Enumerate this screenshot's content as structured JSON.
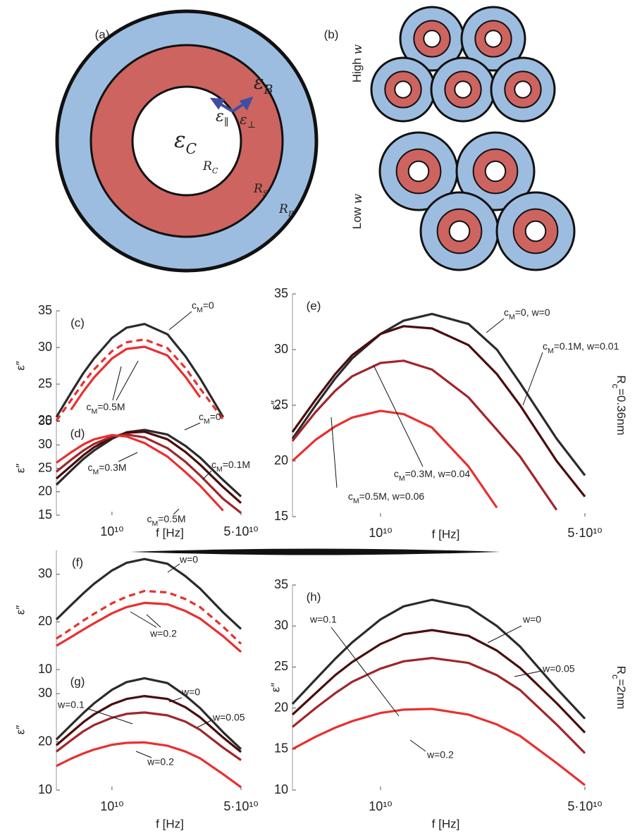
{
  "diagrams": {
    "panel_a": {
      "label": "(a)",
      "texts": [
        "εB",
        "ε∥",
        "ε⊥",
        "εC",
        "RC",
        "RS",
        "RB"
      ]
    },
    "panel_b": {
      "label": "(b)",
      "texts": [
        "High w",
        "Low w"
      ]
    }
  },
  "chart_data": [
    {
      "type": "line",
      "label": "(c)",
      "xscale": "log",
      "ylabel": "ε″",
      "x": [
        5000000000.0,
        6000000000.0,
        7000000000.0,
        8000000000.0,
        10000000000.0,
        12000000000.0,
        15000000000.0,
        20000000000.0,
        25000000000.0,
        30000000000.0,
        40000000000.0,
        50000000000.0
      ],
      "xlim": [
        5000000000.0,
        50000000000.0
      ],
      "ylim": [
        20,
        35
      ],
      "yticks": [
        20,
        25,
        30,
        35
      ],
      "series": [
        {
          "color": "#2b2b2b",
          "values": [
            20.5,
            23.8,
            26.5,
            28.5,
            31.3,
            32.7,
            33.2,
            31.8,
            28.8,
            25.8,
            20.5,
            null
          ]
        },
        {
          "color": "#e8302f",
          "dash": true,
          "values": [
            20.0,
            22.8,
            25.2,
            27.0,
            29.5,
            30.7,
            31.1,
            29.9,
            27.2,
            24.4,
            20.2,
            null
          ]
        },
        {
          "color": "#e8302f",
          "values": [
            null,
            21.5,
            24.0,
            25.9,
            28.5,
            29.8,
            30.1,
            28.9,
            26.0,
            23.2,
            null,
            null
          ]
        }
      ],
      "annotations": [
        "cM=0",
        "cM=0.5M"
      ]
    },
    {
      "type": "line",
      "label": "(d)",
      "xscale": "log",
      "ylabel": "ε″",
      "xlabel": "f [Hz]",
      "x": [
        5000000000.0,
        6000000000.0,
        7000000000.0,
        8000000000.0,
        10000000000.0,
        12000000000.0,
        15000000000.0,
        20000000000.0,
        25000000000.0,
        30000000000.0,
        40000000000.0,
        50000000000.0
      ],
      "xlim": [
        5000000000.0,
        50000000000.0
      ],
      "xticks": [
        {
          "value": 10000000000.0,
          "label": "10¹⁰"
        },
        {
          "value": 50000000000.0,
          "label": "5·10¹⁰"
        }
      ],
      "ylim": [
        15,
        35
      ],
      "yticks": [
        15,
        20,
        25,
        30,
        35
      ],
      "series": [
        {
          "color": "#2b2b2b",
          "values": [
            21.5,
            24.5,
            27.0,
            28.8,
            31.3,
            32.7,
            33.2,
            32.2,
            29.8,
            27.3,
            22.5,
            19.0
          ]
        },
        {
          "color": "#4a0c0c",
          "values": [
            22.8,
            25.5,
            27.8,
            29.5,
            31.6,
            32.6,
            32.8,
            31.2,
            28.5,
            25.8,
            21.0,
            17.6
          ]
        },
        {
          "color": "#a0262a",
          "values": [
            24.3,
            26.8,
            28.8,
            30.2,
            31.8,
            32.2,
            31.6,
            29.3,
            26.4,
            23.5,
            18.5,
            15.5
          ]
        },
        {
          "color": "#e8302f",
          "values": [
            26.2,
            28.4,
            30.1,
            31.2,
            32.1,
            31.8,
            30.4,
            27.5,
            24.2,
            21.3,
            16.0,
            null
          ]
        }
      ],
      "annotations": [
        "cM=0",
        "cM=0.1M",
        "cM=0.3M",
        "cM=0.5M"
      ]
    },
    {
      "type": "line",
      "label": "(e)",
      "xscale": "log",
      "ylabel": "ε″",
      "xlabel": "f [Hz]",
      "side_label": "Rc=0.36nm",
      "x": [
        5000000000.0,
        6000000000.0,
        7000000000.0,
        8000000000.0,
        10000000000.0,
        12000000000.0,
        15000000000.0,
        20000000000.0,
        25000000000.0,
        30000000000.0,
        40000000000.0,
        50000000000.0
      ],
      "xlim": [
        5000000000.0,
        50000000000.0
      ],
      "xticks": [
        {
          "value": 10000000000.0,
          "label": "10¹⁰"
        },
        {
          "value": 50000000000.0,
          "label": "5·10¹⁰"
        }
      ],
      "ylim": [
        15,
        35
      ],
      "yticks": [
        15,
        20,
        25,
        30,
        35
      ],
      "series": [
        {
          "color": "#2b2b2b",
          "values": [
            22.0,
            25.0,
            27.4,
            29.2,
            31.4,
            32.6,
            33.2,
            32.3,
            30.0,
            27.0,
            22.0,
            18.7
          ]
        },
        {
          "color": "#4a0c0c",
          "values": [
            22.6,
            25.5,
            27.8,
            29.5,
            31.4,
            32.1,
            31.9,
            30.4,
            27.8,
            25.0,
            20.0,
            16.8
          ]
        },
        {
          "color": "#a0262a",
          "values": [
            21.8,
            24.4,
            26.3,
            27.6,
            28.8,
            29.0,
            28.2,
            25.7,
            22.8,
            20.4,
            15.6,
            null
          ]
        },
        {
          "color": "#e8302f",
          "values": [
            20.0,
            21.9,
            23.1,
            23.9,
            24.5,
            24.2,
            23.0,
            19.5,
            15.8,
            null,
            null,
            null
          ]
        }
      ],
      "annotations": [
        "cM=0, w=0",
        "cM=0.1M, w=0.01",
        "cM=0.3M, w=0.04",
        "cM=0.5M, w=0.06"
      ]
    },
    {
      "type": "line",
      "label": "(f)",
      "xscale": "log",
      "ylabel": "ε″",
      "x": [
        5000000000.0,
        6000000000.0,
        7000000000.0,
        8000000000.0,
        10000000000.0,
        12000000000.0,
        15000000000.0,
        20000000000.0,
        25000000000.0,
        30000000000.0,
        40000000000.0,
        50000000000.0
      ],
      "xlim": [
        5000000000.0,
        50000000000.0
      ],
      "ylim": [
        10,
        35
      ],
      "yticks": [
        10,
        20,
        30
      ],
      "series": [
        {
          "color": "#2b2b2b",
          "values": [
            20.5,
            23.5,
            26.0,
            28.0,
            30.8,
            32.4,
            33.2,
            32.2,
            29.6,
            27.0,
            22.0,
            18.5
          ]
        },
        {
          "color": "#e8302f",
          "dash": true,
          "values": [
            16.5,
            18.5,
            20.3,
            21.7,
            23.9,
            25.3,
            26.5,
            26.2,
            24.8,
            23.1,
            19.0,
            15.4
          ]
        },
        {
          "color": "#e8302f",
          "values": [
            15.0,
            16.8,
            18.4,
            19.7,
            21.8,
            23.1,
            24.0,
            23.7,
            22.3,
            20.7,
            17.0,
            13.7
          ]
        }
      ],
      "annotations": [
        "w=0",
        "w=0.2"
      ]
    },
    {
      "type": "line",
      "label": "(g)",
      "xscale": "log",
      "ylabel": "ε″",
      "xlabel": "f [Hz]",
      "x": [
        5000000000.0,
        6000000000.0,
        7000000000.0,
        8000000000.0,
        10000000000.0,
        12000000000.0,
        15000000000.0,
        20000000000.0,
        25000000000.0,
        30000000000.0,
        40000000000.0,
        50000000000.0
      ],
      "xlim": [
        5000000000.0,
        50000000000.0
      ],
      "xticks": [
        {
          "value": 10000000000.0,
          "label": "10¹⁰"
        },
        {
          "value": 50000000000.0,
          "label": "5·10¹⁰"
        }
      ],
      "ylim": [
        10,
        35
      ],
      "yticks": [
        10,
        20,
        30
      ],
      "series": [
        {
          "color": "#2b2b2b",
          "values": [
            20.5,
            23.5,
            26.0,
            28.0,
            30.8,
            32.4,
            33.2,
            32.2,
            29.6,
            27.0,
            22.0,
            18.5
          ]
        },
        {
          "color": "#4a0c0c",
          "values": [
            19.3,
            21.9,
            24.1,
            25.7,
            27.8,
            28.9,
            29.5,
            28.9,
            27.2,
            25.1,
            20.9,
            17.9
          ]
        },
        {
          "color": "#a0262a",
          "values": [
            18.0,
            20.3,
            22.2,
            23.5,
            25.0,
            25.8,
            26.1,
            25.5,
            24.2,
            22.5,
            18.8,
            16.2
          ]
        },
        {
          "color": "#e8302f",
          "values": [
            15.0,
            16.5,
            17.6,
            18.4,
            19.4,
            19.8,
            19.9,
            19.2,
            18.0,
            16.6,
            13.3,
            10.6
          ]
        }
      ],
      "annotations": [
        "w=0",
        "w=0.05",
        "w=0.1",
        "w=0.2"
      ]
    },
    {
      "type": "line",
      "label": "(h)",
      "xscale": "log",
      "ylabel": "ε″",
      "xlabel": "f [Hz]",
      "side_label": "Rc=2nm",
      "x": [
        5000000000.0,
        6000000000.0,
        7000000000.0,
        8000000000.0,
        10000000000.0,
        12000000000.0,
        15000000000.0,
        20000000000.0,
        25000000000.0,
        30000000000.0,
        40000000000.0,
        50000000000.0
      ],
      "xlim": [
        5000000000.0,
        50000000000.0
      ],
      "xticks": [
        {
          "value": 10000000000.0,
          "label": "10¹⁰"
        },
        {
          "value": 50000000000.0,
          "label": "5·10¹⁰"
        }
      ],
      "ylim": [
        10,
        35
      ],
      "yticks": [
        10,
        15,
        20,
        25,
        30,
        35
      ],
      "series": [
        {
          "color": "#2b2b2b",
          "values": [
            20.5,
            23.5,
            26.0,
            28.0,
            30.8,
            32.4,
            33.2,
            32.3,
            30.0,
            27.5,
            22.4,
            18.7
          ]
        },
        {
          "color": "#4a0c0c",
          "values": [
            19.2,
            21.8,
            24.0,
            25.6,
            27.8,
            29.0,
            29.5,
            28.8,
            27.0,
            24.9,
            20.6,
            17.0
          ]
        },
        {
          "color": "#a0262a",
          "values": [
            17.7,
            20.0,
            21.8,
            23.2,
            24.8,
            25.7,
            26.1,
            25.5,
            24.0,
            22.2,
            18.0,
            14.5
          ]
        },
        {
          "color": "#e8302f",
          "values": [
            15.0,
            16.5,
            17.6,
            18.4,
            19.4,
            19.8,
            19.9,
            19.2,
            18.0,
            16.6,
            13.3,
            10.6
          ]
        }
      ],
      "annotations": [
        "w=0",
        "w=0.05",
        "w=0.1",
        "w=0.2"
      ]
    }
  ]
}
